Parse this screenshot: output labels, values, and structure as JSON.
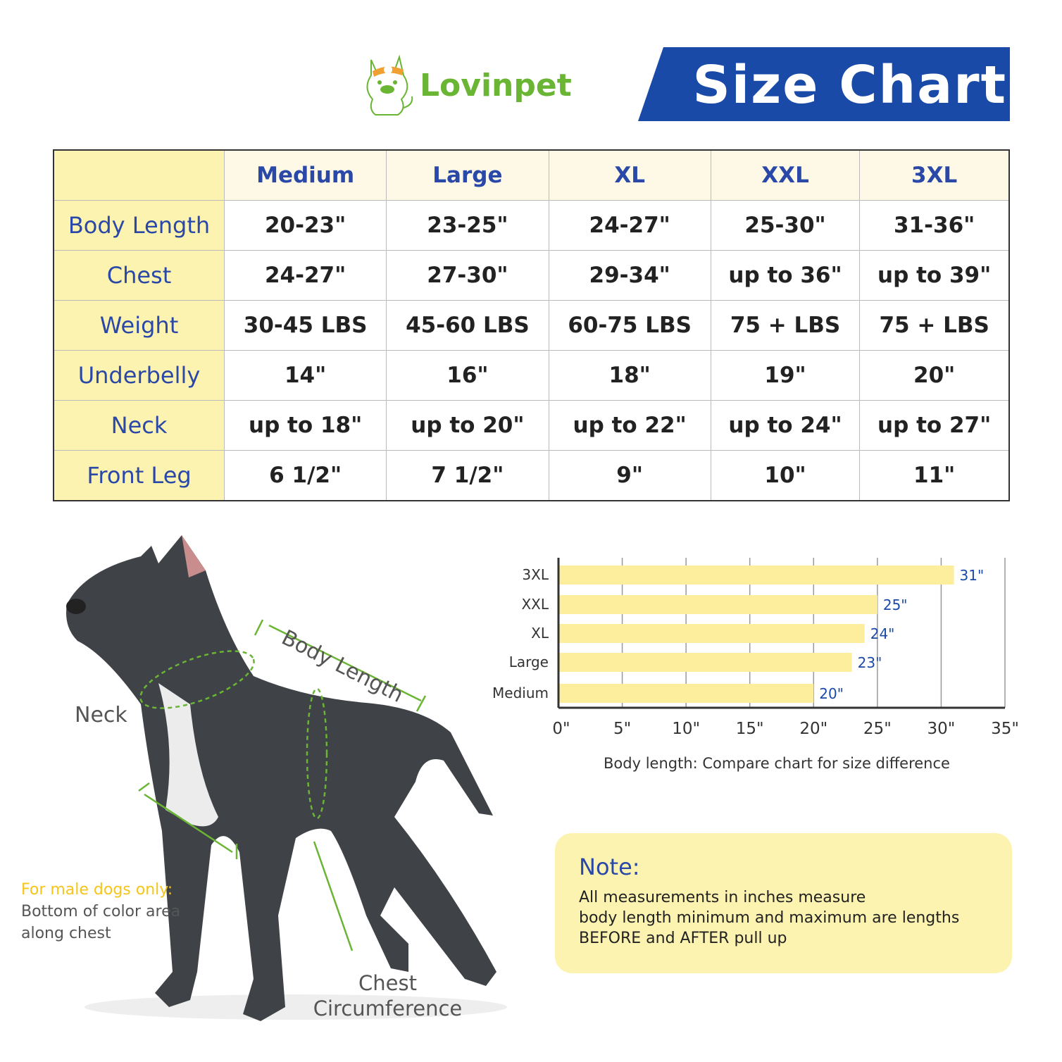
{
  "brand": {
    "name": "Lovinpet",
    "logo_color": "#6ab534",
    "accent_color": "#f0a032"
  },
  "banner": {
    "title": "Size Chart",
    "color": "#1a4aa8"
  },
  "table": {
    "columns": [
      "Medium",
      "Large",
      "XL",
      "XXL",
      "3XL"
    ],
    "rows": [
      {
        "label": "Body Length",
        "values": [
          "20-23\"",
          "23-25\"",
          "24-27\"",
          "25-30\"",
          "31-36\""
        ]
      },
      {
        "label": "Chest",
        "values": [
          "24-27\"",
          "27-30\"",
          "29-34\"",
          "up to 36\"",
          "up to 39\""
        ]
      },
      {
        "label": "Weight",
        "values": [
          "30-45 LBS",
          "45-60 LBS",
          "60-75 LBS",
          "75 + LBS",
          "75 + LBS"
        ]
      },
      {
        "label": "Underbelly",
        "values": [
          "14\"",
          "16\"",
          "18\"",
          "19\"",
          "20\""
        ]
      },
      {
        "label": "Neck",
        "values": [
          "up to 18\"",
          "up to 20\"",
          "up to 22\"",
          "up to 24\"",
          "up to 27\""
        ]
      },
      {
        "label": "Front Leg",
        "values": [
          "6 1/2\"",
          "7 1/2\"",
          "9\"",
          "10\"",
          "11\""
        ]
      }
    ],
    "header_bg": "#fdf3b0",
    "text_color": "#2a48a8"
  },
  "diagram": {
    "neck": "Neck",
    "body_length": "Body Length",
    "chest_line1": "Chest",
    "chest_line2": "Circumference",
    "male_note_title": "For male dogs only:",
    "male_note_line1": "Bottom of color area",
    "male_note_line2": "along chest",
    "guide_color": "#6ab534"
  },
  "chart_data": {
    "type": "bar",
    "orientation": "horizontal",
    "categories": [
      "3XL",
      "XXL",
      "XL",
      "Large",
      "Medium"
    ],
    "values": [
      31,
      25,
      24,
      23,
      20
    ],
    "data_labels": [
      "31\"",
      "25\"",
      "24\"",
      "23\"",
      "20\""
    ],
    "xticks": [
      "0\"",
      "5\"",
      "10\"",
      "15\"",
      "20\"",
      "25\"",
      "30\"",
      "35\""
    ],
    "xlim": [
      0,
      35
    ],
    "grid": true,
    "bar_color": "#fdee9e",
    "label_color": "#1a4aa8",
    "caption": "Body length: Compare chart for size difference"
  },
  "note": {
    "title": "Note:",
    "lines": [
      "All measurements in inches measure",
      "body length minimum and maximum are lengths",
      "BEFORE and AFTER pull up"
    ]
  }
}
